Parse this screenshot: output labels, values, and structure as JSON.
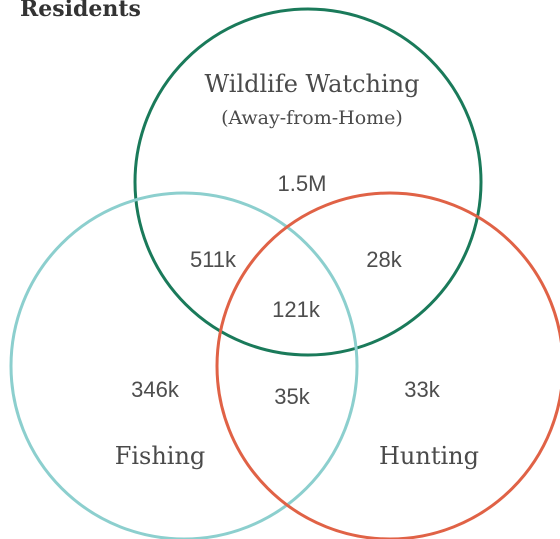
{
  "title": "Residents",
  "sets": {
    "wildlife": {
      "label": "Wildlife Watching",
      "sublabel": "(Away-from-Home)",
      "color": "#1a7a5a"
    },
    "fishing": {
      "label": "Fishing",
      "color": "#8ccfce"
    },
    "hunting": {
      "label": "Hunting",
      "color": "#e06246"
    }
  },
  "regions": {
    "wildlife_only": "1.5M",
    "wildlife_fishing": "511k",
    "wildlife_hunting": "28k",
    "all_three": "121k",
    "fishing_only": "346k",
    "hunting_only": "33k",
    "fishing_hunting": "35k"
  }
}
